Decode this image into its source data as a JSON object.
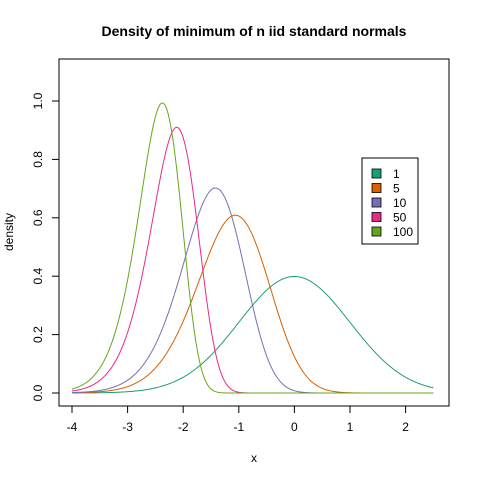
{
  "chart_data": {
    "type": "line",
    "title": "Density of minimum of n iid standard normals",
    "xlabel": "x",
    "ylabel": "density",
    "xlim": [
      -4,
      2.5
    ],
    "ylim": [
      0,
      1.1
    ],
    "xticks": [
      "-4",
      "-3",
      "-2",
      "-1",
      "0",
      "1",
      "2"
    ],
    "yticks": [
      "0.0",
      "0.2",
      "0.4",
      "0.6",
      "0.8",
      "1.0"
    ],
    "grid": false,
    "legend_position": "right",
    "series": [
      {
        "name": "1",
        "color": "#1b9e77",
        "n": 1,
        "peak_x": 0.0,
        "peak_y": 0.399
      },
      {
        "name": "5",
        "color": "#d95f02",
        "n": 5,
        "peak_x": -1.06,
        "peak_y": 0.607
      },
      {
        "name": "10",
        "color": "#7570b3",
        "n": 10,
        "peak_x": -1.43,
        "peak_y": 0.697
      },
      {
        "name": "50",
        "color": "#e7298a",
        "n": 50,
        "peak_x": -2.13,
        "peak_y": 0.907
      },
      {
        "name": "100",
        "color": "#66a61e",
        "n": 100,
        "peak_x": -2.37,
        "peak_y": 0.99
      }
    ]
  }
}
